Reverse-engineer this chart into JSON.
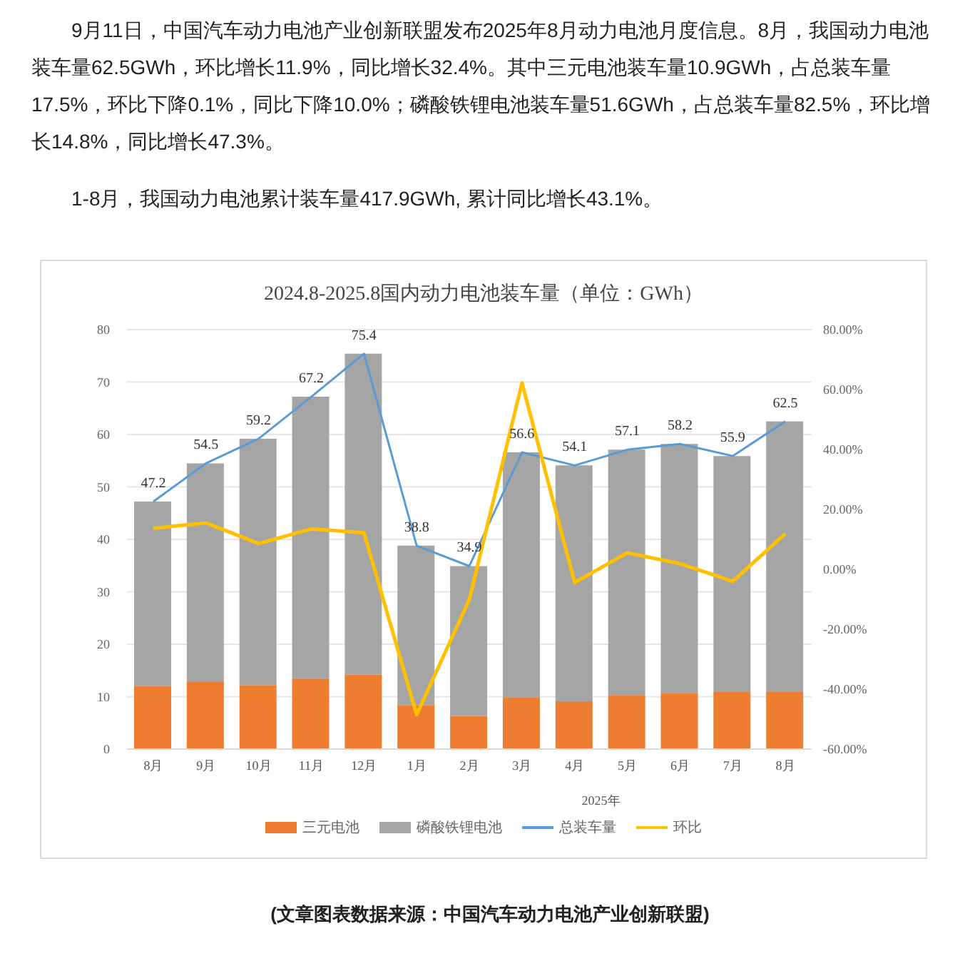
{
  "chart_data": {
    "type": "bar",
    "title": "2024.8-2025.8国内动力电池装车量（单位：GWh）",
    "xlabel": "2025年",
    "annotations": [
      "9月11日，中国汽车动力电池产业创新联盟发布2025年8月动力电池月度信息。8月，我国动力电池装车量62.5GWh，环比增长11.9%，同比增长32.4%。其中三元电池装车量10.9GWh，占总装车量17.5%，环比下降0.1%，同比下降10.0%；磷酸铁锂电池装车量51.6GWh，占总装车量82.5%，环比增长14.8%，同比增长47.3%。",
      "1-8月，我国动力电池累计装车量417.9GWh, 累计同比增长43.1%。",
      "(文章图表数据来源：中国汽车动力电池产业创新联盟)"
    ],
    "categories": [
      "8月",
      "9月",
      "10月",
      "11月",
      "12月",
      "1月",
      "2月",
      "3月",
      "4月",
      "5月",
      "6月",
      "7月",
      "8月"
    ],
    "stacked": true,
    "series": [
      {
        "name": "三元电池",
        "color": "#ed7d31",
        "values": [
          12.0,
          12.8,
          12.2,
          13.5,
          14.2,
          8.4,
          6.3,
          9.9,
          9.1,
          10.3,
          10.7,
          10.9,
          10.9
        ]
      },
      {
        "name": "磷酸铁锂电池",
        "color": "#a5a5a5",
        "values": [
          35.2,
          41.7,
          47.0,
          53.7,
          61.2,
          30.4,
          28.6,
          46.7,
          45.0,
          46.8,
          47.5,
          45.0,
          51.6
        ]
      },
      {
        "name": "总装车量",
        "type": "line",
        "color": "#5b9bd5",
        "values": [
          47.2,
          54.5,
          59.2,
          67.2,
          75.4,
          38.8,
          34.9,
          56.6,
          54.1,
          57.1,
          58.2,
          55.9,
          62.5
        ],
        "value_labels": [
          "47.2",
          "54.5",
          "59.2",
          "67.2",
          "75.4",
          "38.8",
          "34.9",
          "56.6",
          "54.1",
          "57.1",
          "58.2",
          "55.9",
          "62.5"
        ]
      },
      {
        "name": "环比",
        "type": "line",
        "axis": "y2",
        "color": "#ffc000",
        "values": [
          13.7,
          15.5,
          8.6,
          13.5,
          12.2,
          -48.5,
          -10.1,
          62.2,
          -4.4,
          5.5,
          1.9,
          -4.0,
          11.9
        ]
      }
    ],
    "ylim": [
      0,
      80
    ],
    "yticks": [
      0,
      10,
      20,
      30,
      40,
      50,
      60,
      70,
      80
    ],
    "y2lim": [
      -60,
      80
    ],
    "y2ticks": [
      {
        "value": -60,
        "label": "-60.00%"
      },
      {
        "value": -40,
        "label": "-40.00%"
      },
      {
        "value": -20,
        "label": "-20.00%"
      },
      {
        "value": 0,
        "label": "0.00%"
      },
      {
        "value": 20,
        "label": "20.00%"
      },
      {
        "value": 40,
        "label": "40.00%"
      },
      {
        "value": 60,
        "label": "60.00%"
      },
      {
        "value": 80,
        "label": "80.00%"
      }
    ],
    "grid": "y",
    "legend": "bottom",
    "marker": "none",
    "line_style": "solid"
  }
}
